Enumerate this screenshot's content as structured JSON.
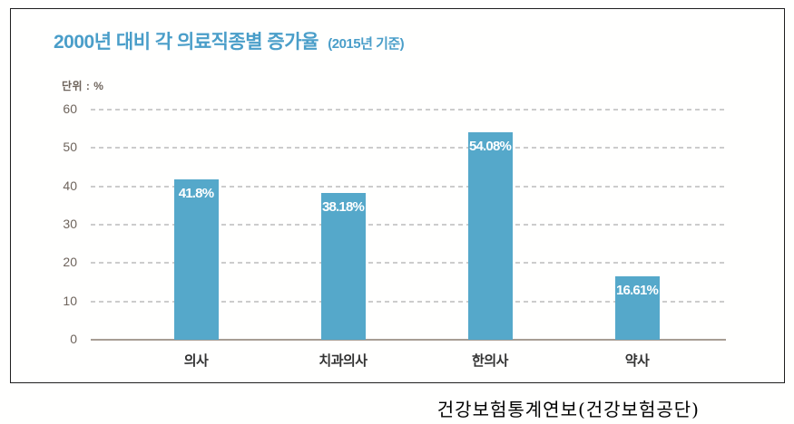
{
  "title": {
    "main": "2000년 대비 각 의료직종별 증가율",
    "suffix": "(2015년 기준)"
  },
  "unit_label": "단위 : %",
  "source_text": "건강보험통계연보(건강보험공단)",
  "colors": {
    "title": "#4a9ec9",
    "bar": "#55a8ca",
    "bar_value_text": "#ffffff",
    "y_tick_text": "#6e645c",
    "gridline": "#cccccc",
    "baseline": "#a79d94",
    "category_text": "#333333",
    "card_border": "#1f1f1f"
  },
  "chart_data": {
    "type": "bar",
    "title": "2000년 대비 각 의료직종별 증가율 (2015년 기준)",
    "categories": [
      "의사",
      "치과의사",
      "한의사",
      "약사"
    ],
    "values": [
      41.8,
      38.18,
      54.08,
      16.61
    ],
    "value_labels": [
      "41.8%",
      "38.18%",
      "54.08%",
      "16.61%"
    ],
    "unit": "%",
    "ylabel": "단위 : %",
    "ylim": [
      0,
      60
    ],
    "yticks": [
      0,
      10,
      20,
      30,
      40,
      50,
      60
    ],
    "grid": "horizontal-dashed",
    "legend": "none",
    "source": "건강보험통계연보(건강보험공단)"
  }
}
